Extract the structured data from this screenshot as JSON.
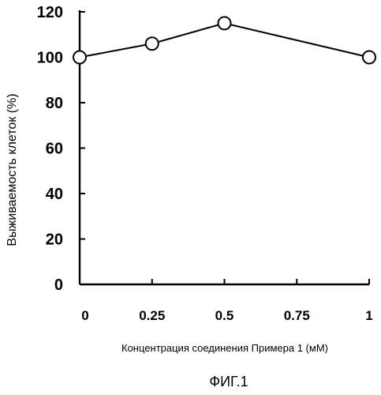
{
  "chart_data": {
    "type": "line",
    "title": "",
    "xlabel": "Концентрация соединения Примера 1 (мМ)",
    "ylabel": "Выживаемость клеток (%)",
    "categories": [
      "0",
      "0.25",
      "0.5",
      "0.75",
      "1"
    ],
    "x": [
      0,
      0.25,
      0.5,
      0.75,
      1
    ],
    "ylim": [
      0,
      120
    ],
    "yticks": [
      0,
      20,
      40,
      60,
      80,
      100,
      120
    ],
    "grid": false,
    "series": [
      {
        "values": [
          100,
          106,
          115,
          null,
          100
        ],
        "color": "#000000",
        "marker": "open-circle"
      }
    ]
  },
  "caption": "ФИГ.1"
}
